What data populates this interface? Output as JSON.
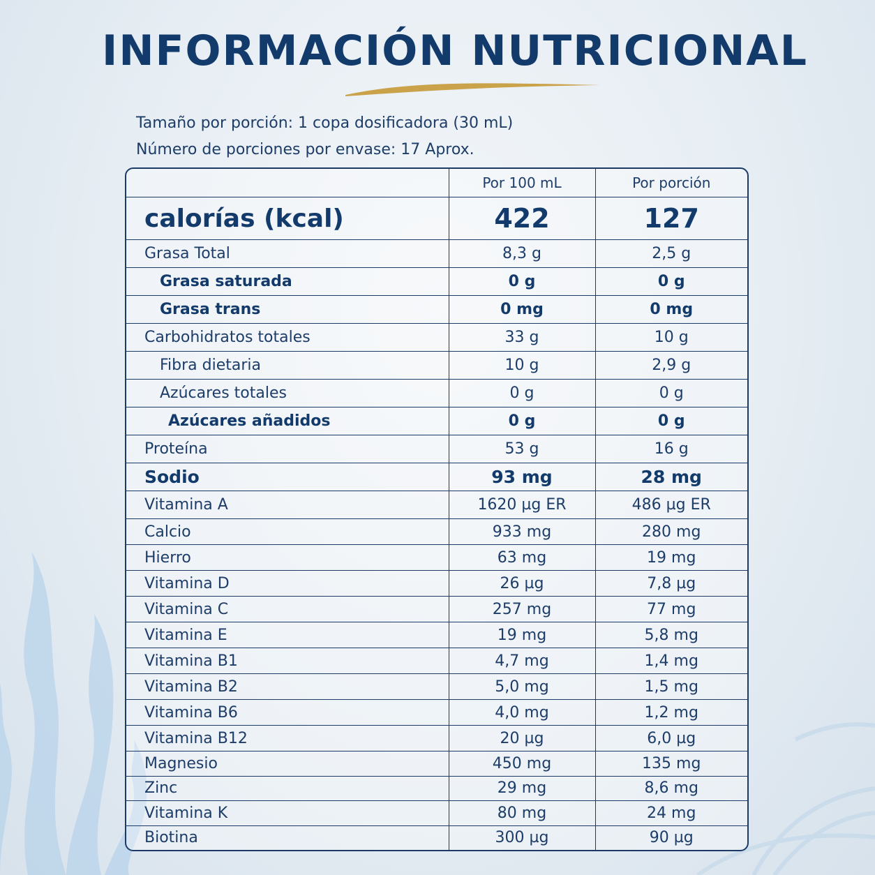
{
  "title": "INFORMACIÓN NUTRICIONAL",
  "serving": {
    "size": "Tamaño por porción: 1 copa dosificadora  (30 mL)",
    "count": "Número de porciones por envase: 17 Aprox."
  },
  "columns": {
    "per100": "Por 100 mL",
    "perServing": "Por porción"
  },
  "calories": {
    "label": "calorías (kcal)",
    "per100": "422",
    "perServing": "127"
  },
  "rows": [
    {
      "label": "Grasa Total",
      "per100": "8,3 g",
      "perServing": "2,5 g"
    },
    {
      "label": "Grasa saturada",
      "per100": "0 g",
      "perServing": "0 g"
    },
    {
      "label": "Grasa trans",
      "per100": "0 mg",
      "perServing": "0 mg"
    },
    {
      "label": "Carbohidratos totales",
      "per100": "33 g",
      "perServing": "10 g"
    },
    {
      "label": "Fibra dietaria",
      "per100": "10 g",
      "perServing": "2,9 g"
    },
    {
      "label": "Azúcares totales",
      "per100": "0 g",
      "perServing": "0 g"
    },
    {
      "label": "Azúcares añadidos",
      "per100": "0 g",
      "perServing": "0 g"
    },
    {
      "label": "Proteína",
      "per100": "53 g",
      "perServing": "16 g"
    },
    {
      "label": "Sodio",
      "per100": "93 mg",
      "perServing": "28 mg"
    },
    {
      "label": "Vitamina A",
      "per100": "1620 µg ER",
      "perServing": "486 µg ER"
    },
    {
      "label": "Calcio",
      "per100": "933 mg",
      "perServing": "280 mg"
    },
    {
      "label": "Hierro",
      "per100": "63 mg",
      "perServing": "19 mg"
    },
    {
      "label": "Vitamina D",
      "per100": "26 µg",
      "perServing": "7,8 µg"
    },
    {
      "label": "Vitamina C",
      "per100": "257 mg",
      "perServing": "77 mg"
    },
    {
      "label": "Vitamina E",
      "per100": "19 mg",
      "perServing": "5,8 mg"
    },
    {
      "label": "Vitamina B1",
      "per100": "4,7 mg",
      "perServing": "1,4 mg"
    },
    {
      "label": "Vitamina B2",
      "per100": "5,0 mg",
      "perServing": "1,5 mg"
    },
    {
      "label": "Vitamina B6",
      "per100": "4,0 mg",
      "perServing": "1,2 mg"
    },
    {
      "label": "Vitamina B12",
      "per100": "20 µg",
      "perServing": "6,0 µg"
    },
    {
      "label": "Magnesio",
      "per100": "450 mg",
      "perServing": "135 mg"
    },
    {
      "label": "Zinc",
      "per100": "29 mg",
      "perServing": "8,6 mg"
    },
    {
      "label": "Vitamina K",
      "per100": "80 mg",
      "perServing": "24 mg"
    },
    {
      "label": "Biotina",
      "per100": "300 µg",
      "perServing": "90 µg"
    }
  ],
  "colors": {
    "text": "#1b3a66",
    "accent": "#c9a24a",
    "background": "#e6edf3"
  }
}
